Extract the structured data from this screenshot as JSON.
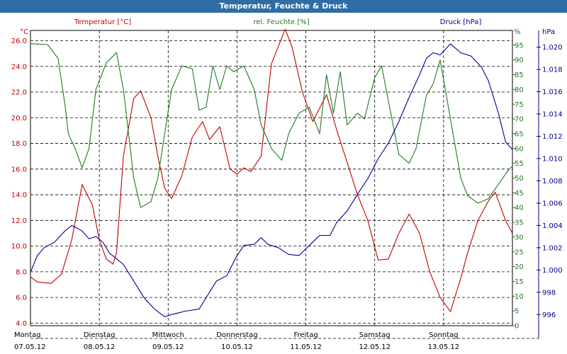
{
  "window_title": "Temperatur, Feuchte & Druck",
  "colors": {
    "temp": "#c00000",
    "hum": "#1f7a1f",
    "press": "#00008b",
    "titlebar": "#2f6da5"
  },
  "chart_data": {
    "type": "line",
    "title": "Temperatur, Feuchte & Druck",
    "grid": true,
    "x_unit": "days since Montag 07.05.12 00:00",
    "x_range": [
      0,
      7
    ],
    "x_tick_labels": [
      {
        "day": "Montag",
        "date": "07.05.12"
      },
      {
        "day": "Dienstag",
        "date": "08.05.12"
      },
      {
        "day": "Mittwoch",
        "date": "09.05.12"
      },
      {
        "day": "Donnerstag",
        "date": "10.05.12"
      },
      {
        "day": "Freitag",
        "date": "11.05.12"
      },
      {
        "day": "Samstag",
        "date": "12.05.12"
      },
      {
        "day": "Sonntag",
        "date": "13.05.12"
      }
    ],
    "axes": {
      "temp": {
        "label": "Temperatur [°C]",
        "unit": "°C",
        "range": [
          3.8,
          26.8
        ],
        "ticks": [
          "4.0",
          "6.0",
          "8.0",
          "10.0",
          "12.0",
          "14.0",
          "16.0",
          "18.0",
          "20.0",
          "22.0",
          "24.0",
          "26.0"
        ]
      },
      "hum": {
        "label": "rel. Feuchte [%]",
        "unit": "%",
        "range": [
          0,
          100
        ],
        "ticks": [
          "0",
          "5",
          "10",
          "15",
          "20",
          "25",
          "30",
          "35",
          "40",
          "45",
          "50",
          "55",
          "60",
          "65",
          "70",
          "75",
          "80",
          "85",
          "90",
          "95"
        ]
      },
      "press": {
        "label": "Druck [hPa]",
        "unit": "hPa",
        "range": [
          995.0,
          1021.5
        ],
        "ticks": [
          "996",
          "998",
          "1.000",
          "1.002",
          "1.004",
          "1.006",
          "1.008",
          "1.010",
          "1.012",
          "1.014",
          "1.016",
          "1.018",
          "1.020"
        ]
      }
    },
    "series": [
      {
        "name": "Temperatur [°C]",
        "axis": "temp",
        "color": "#c00000",
        "x": [
          0,
          0.1,
          0.3,
          0.45,
          0.6,
          0.75,
          0.9,
          1.0,
          1.1,
          1.2,
          1.25,
          1.35,
          1.5,
          1.6,
          1.75,
          1.85,
          1.95,
          2.05,
          2.2,
          2.35,
          2.5,
          2.6,
          2.75,
          2.9,
          3.0,
          3.1,
          3.2,
          3.35,
          3.5,
          3.7,
          3.8,
          3.95,
          4.1,
          4.3,
          4.45,
          4.6,
          4.75,
          4.9,
          5.05,
          5.2,
          5.35,
          5.5,
          5.65,
          5.8,
          5.95,
          6.1,
          6.25,
          6.35,
          6.5,
          6.65,
          6.75,
          6.9,
          7.0
        ],
        "y": [
          7.6,
          7.2,
          7.1,
          7.8,
          10.5,
          14.8,
          13.2,
          10.5,
          9.0,
          8.6,
          9.5,
          17.0,
          21.5,
          22.1,
          20.0,
          17.0,
          14.5,
          13.7,
          15.5,
          18.5,
          19.7,
          18.3,
          19.3,
          16.0,
          15.6,
          16.1,
          15.8,
          17.0,
          24.2,
          26.9,
          25.5,
          22.0,
          19.7,
          21.8,
          19.0,
          16.5,
          14.0,
          12.0,
          8.9,
          9.0,
          11.0,
          12.5,
          11.0,
          8.0,
          6.0,
          4.9,
          7.5,
          9.5,
          12.0,
          13.5,
          14.2,
          12.0,
          11.0
        ]
      },
      {
        "name": "rel. Feuchte [%]",
        "axis": "hum",
        "color": "#1f7a1f",
        "x": [
          0,
          0.25,
          0.4,
          0.5,
          0.55,
          0.65,
          0.75,
          0.85,
          0.95,
          1.1,
          1.25,
          1.35,
          1.5,
          1.6,
          1.75,
          1.85,
          1.95,
          2.05,
          2.2,
          2.35,
          2.45,
          2.55,
          2.65,
          2.75,
          2.85,
          2.95,
          3.1,
          3.25,
          3.35,
          3.5,
          3.65,
          3.75,
          3.9,
          4.05,
          4.2,
          4.3,
          4.4,
          4.5,
          4.6,
          4.75,
          4.85,
          5.0,
          5.1,
          5.25,
          5.35,
          5.5,
          5.6,
          5.75,
          5.85,
          5.95,
          6.1,
          6.25,
          6.35,
          6.5,
          6.65,
          6.8,
          6.95,
          7.0
        ],
        "y": [
          95.5,
          95.2,
          90.5,
          75.0,
          65.0,
          60.0,
          53.5,
          60.0,
          80.0,
          89.0,
          92.5,
          80.0,
          50.0,
          40.0,
          42.0,
          50.0,
          65.0,
          80.0,
          88.0,
          87.0,
          73.0,
          74.0,
          88.0,
          80.0,
          88.0,
          86.0,
          88.0,
          80.0,
          68.0,
          60.0,
          56.0,
          65.0,
          72.0,
          74.0,
          65.0,
          85.0,
          72.0,
          86.0,
          68.0,
          72.0,
          70.0,
          84.0,
          88.0,
          70.0,
          58.0,
          55.0,
          60.0,
          78.0,
          82.0,
          90.0,
          70.0,
          50.0,
          44.0,
          41.5,
          43.0,
          48.0,
          53.0,
          54.0
        ]
      },
      {
        "name": "Druck [hPa]",
        "axis": "press",
        "color": "#00008b",
        "x": [
          0,
          0.1,
          0.2,
          0.35,
          0.5,
          0.6,
          0.75,
          0.85,
          0.95,
          1.05,
          1.15,
          1.25,
          1.35,
          1.5,
          1.65,
          1.8,
          1.95,
          2.05,
          2.25,
          2.45,
          2.55,
          2.7,
          2.85,
          3.0,
          3.1,
          3.25,
          3.35,
          3.45,
          3.6,
          3.75,
          3.9,
          4.05,
          4.2,
          4.35,
          4.45,
          4.6,
          4.75,
          4.9,
          5.05,
          5.2,
          5.35,
          5.5,
          5.65,
          5.75,
          5.85,
          5.95,
          6.1,
          6.25,
          6.4,
          6.55,
          6.65,
          6.8,
          6.9,
          7.0
        ],
        "y": [
          999.8,
          1001.3,
          1002.0,
          1002.5,
          1003.5,
          1004.0,
          1003.5,
          1002.8,
          1003.0,
          1002.5,
          1001.5,
          1001.0,
          1000.5,
          999.0,
          997.5,
          996.5,
          995.8,
          996.0,
          996.3,
          996.5,
          997.5,
          999.0,
          999.5,
          1001.3,
          1002.2,
          1002.3,
          1002.9,
          1002.3,
          1002.0,
          1001.4,
          1001.3,
          1002.2,
          1003.1,
          1003.1,
          1004.3,
          1005.3,
          1006.8,
          1008.2,
          1010.0,
          1011.4,
          1013.3,
          1015.5,
          1017.5,
          1019.0,
          1019.5,
          1019.3,
          1020.3,
          1019.5,
          1019.2,
          1018.2,
          1017.0,
          1014.0,
          1011.5,
          1010.8
        ]
      }
    ]
  }
}
